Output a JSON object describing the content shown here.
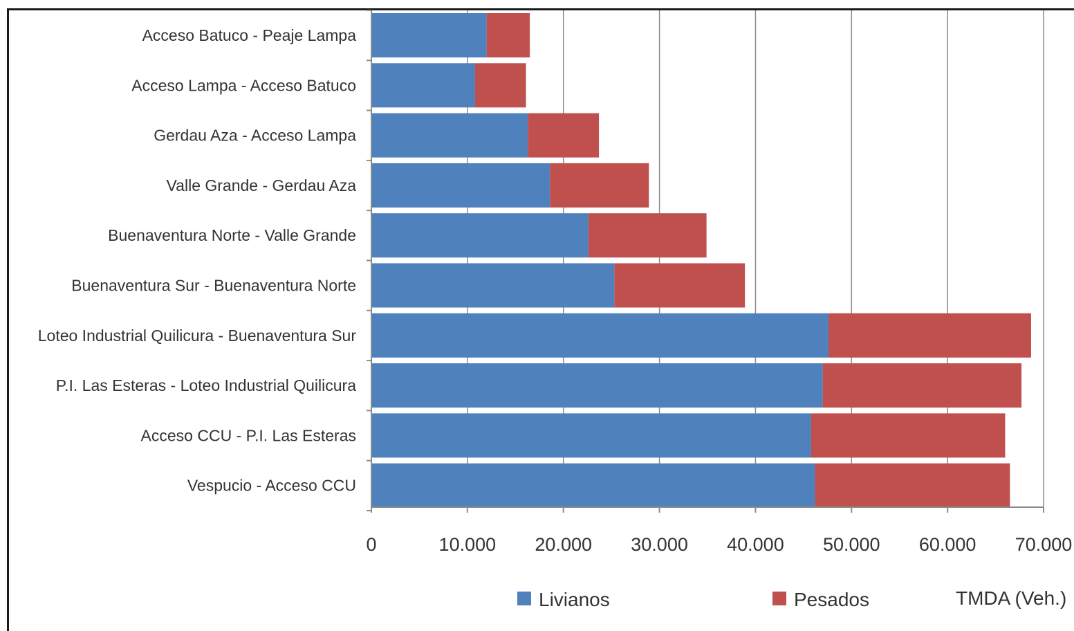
{
  "chart_data": {
    "type": "bar",
    "orientation": "horizontal",
    "stacked": true,
    "categories": [
      "Acceso Batuco - Peaje Lampa",
      "Acceso Lampa - Acceso Batuco",
      "Gerdau Aza - Acceso Lampa",
      "Valle Grande - Gerdau Aza",
      "Buenaventura Norte - Valle Grande",
      "Buenaventura Sur - Buenaventura Norte",
      "Loteo Industrial Quilicura - Buenaventura Sur",
      "P.I. Las Esteras - Loteo Industrial Quilicura",
      "Acceso CCU - P.I. Las Esteras",
      "Vespucio - Acceso CCU"
    ],
    "series": [
      {
        "name": "Livianos",
        "color": "#4f81bd",
        "values": [
          12000,
          10800,
          16300,
          18600,
          22600,
          25300,
          47600,
          47000,
          45800,
          46200
        ]
      },
      {
        "name": "Pesados",
        "color": "#c0504d",
        "values": [
          4500,
          5300,
          7400,
          10300,
          12300,
          13600,
          21100,
          20700,
          20200,
          20300
        ]
      }
    ],
    "xlim": [
      0,
      70000
    ],
    "xticks": [
      0,
      10000,
      20000,
      30000,
      40000,
      50000,
      60000,
      70000
    ],
    "xtick_labels": [
      "0",
      "10.000",
      "20.000",
      "30.000",
      "40.000",
      "50.000",
      "60.000",
      "70.000"
    ],
    "xlabel": "TMDA (Veh.)",
    "ylabel": "",
    "title": "",
    "grid": "vertical",
    "legend": "bottom"
  }
}
